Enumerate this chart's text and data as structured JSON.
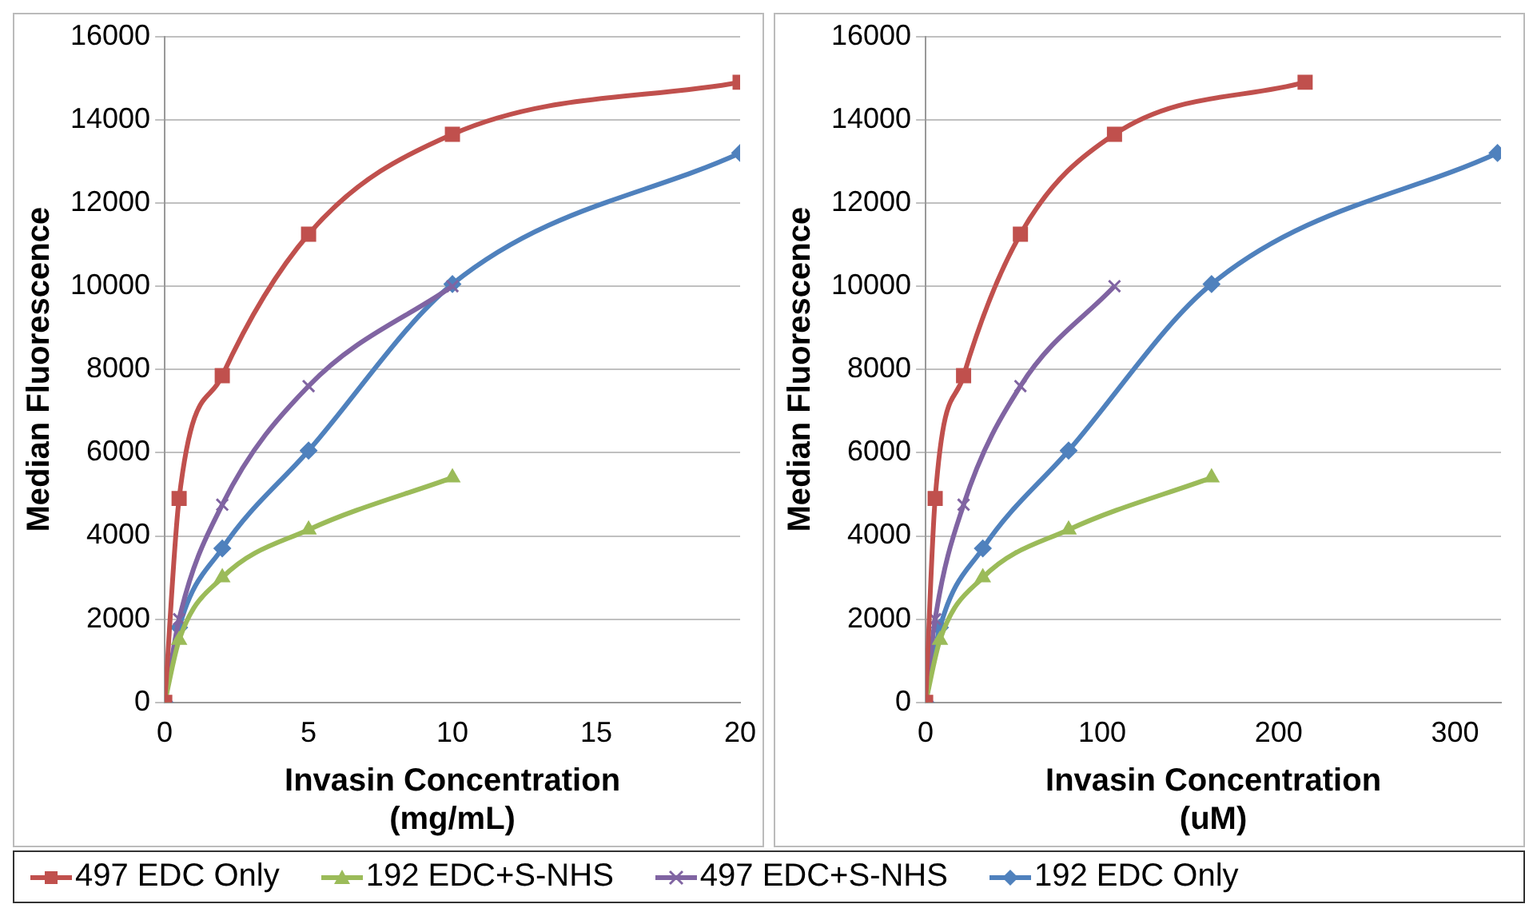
{
  "chart_data": [
    {
      "type": "line",
      "xlabel": "Invasin Concentration\n(mg/mL)",
      "ylabel": "Median Fluorescence",
      "xlim": [
        0,
        20
      ],
      "xticks": [
        0,
        5,
        10,
        15,
        20
      ],
      "ylim": [
        0,
        16000
      ],
      "yticks": [
        0,
        2000,
        4000,
        6000,
        8000,
        10000,
        12000,
        14000,
        16000
      ],
      "grid": "y",
      "legend": "bottom",
      "series": [
        {
          "name": "497 EDC Only",
          "color": "#c0504d",
          "marker": "square",
          "x": [
            0,
            0.5,
            2,
            5,
            10,
            20
          ],
          "values": [
            0,
            4900,
            7850,
            11250,
            13650,
            14900
          ]
        },
        {
          "name": "192 EDC+S-NHS",
          "color": "#9bbb59",
          "marker": "triangle",
          "x": [
            0,
            0.5,
            2,
            5,
            10
          ],
          "values": [
            0,
            1500,
            3000,
            4150,
            5400
          ]
        },
        {
          "name": "497 EDC+S-NHS",
          "color": "#8064a2",
          "marker": "cross",
          "x": [
            0,
            0.5,
            2,
            5,
            10
          ],
          "values": [
            0,
            2000,
            4750,
            7600,
            10000
          ]
        },
        {
          "name": "192 EDC Only",
          "color": "#4f81bd",
          "marker": "diamond",
          "x": [
            0,
            0.5,
            2,
            5,
            10,
            20
          ],
          "values": [
            0,
            1800,
            3700,
            6050,
            10050,
            13200
          ]
        }
      ]
    },
    {
      "type": "line",
      "xlabel": "Invasin Concentration\n(uM)",
      "ylabel": "Median Fluorescence",
      "xlim": [
        0,
        326
      ],
      "xticks": [
        0,
        100,
        200,
        300
      ],
      "ylim": [
        0,
        16000
      ],
      "yticks": [
        0,
        2000,
        4000,
        6000,
        8000,
        10000,
        12000,
        14000,
        16000
      ],
      "grid": "y",
      "legend": "bottom",
      "series": [
        {
          "name": "497 EDC Only",
          "color": "#c0504d",
          "marker": "square",
          "x": [
            0,
            5.4,
            21.5,
            53.7,
            107,
            215
          ],
          "values": [
            0,
            4900,
            7850,
            11250,
            13650,
            14900
          ]
        },
        {
          "name": "192 EDC+S-NHS",
          "color": "#9bbb59",
          "marker": "triangle",
          "x": [
            0,
            8.1,
            32.4,
            81,
            162
          ],
          "values": [
            0,
            1500,
            3000,
            4150,
            5400
          ]
        },
        {
          "name": "497 EDC+S-NHS",
          "color": "#8064a2",
          "marker": "cross",
          "x": [
            0,
            5.4,
            21.5,
            53.7,
            107
          ],
          "values": [
            0,
            2000,
            4750,
            7600,
            10000
          ]
        },
        {
          "name": "192 EDC Only",
          "color": "#4f81bd",
          "marker": "diamond",
          "x": [
            0,
            8.1,
            32.4,
            81,
            162,
            324
          ],
          "values": [
            0,
            1800,
            3700,
            6050,
            10050,
            13200
          ]
        }
      ]
    }
  ]
}
